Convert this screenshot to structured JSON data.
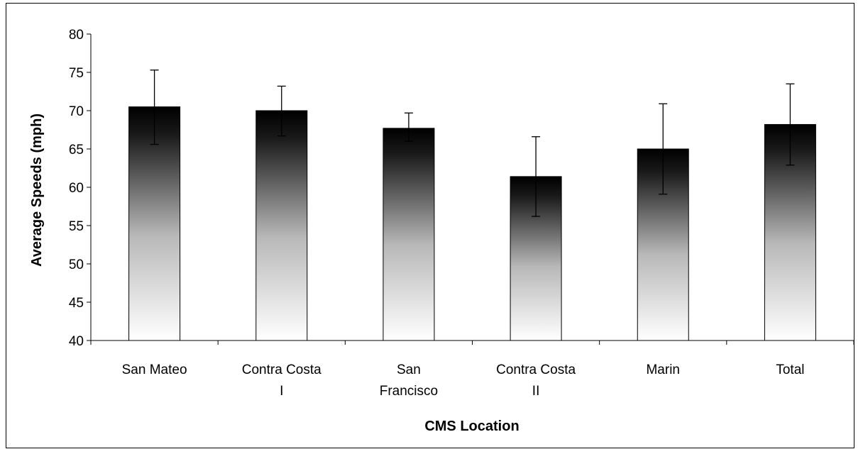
{
  "chart_data": {
    "type": "bar",
    "title": "",
    "xlabel": "CMS Location",
    "ylabel": "Average Speeds (mph)",
    "ylim": [
      40,
      80
    ],
    "yticks": [
      40,
      45,
      50,
      55,
      60,
      65,
      70,
      75,
      80
    ],
    "grid": false,
    "legend": "none",
    "bar_gradient": [
      "#000000",
      "#ffffff"
    ],
    "categories": [
      [
        "San Mateo"
      ],
      [
        "Contra Costa",
        "I"
      ],
      [
        "San",
        "Francisco"
      ],
      [
        "Contra Costa",
        "II"
      ],
      [
        "Marin"
      ],
      [
        "Total"
      ]
    ],
    "series": [
      {
        "values": [
          70.5,
          70.0,
          67.7,
          61.4,
          65.0,
          68.2
        ],
        "error_low": [
          65.6,
          66.7,
          66.0,
          56.2,
          59.1,
          62.9
        ],
        "error_high": [
          75.3,
          73.2,
          69.7,
          66.6,
          70.9,
          73.5
        ]
      }
    ]
  }
}
